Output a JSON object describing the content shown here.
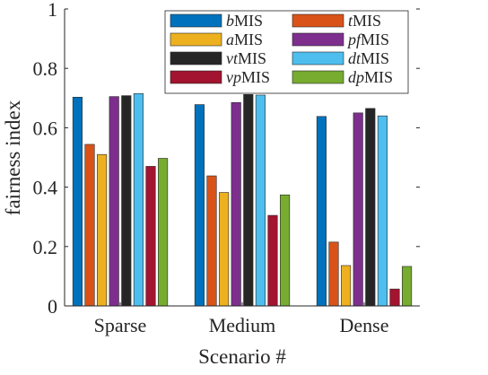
{
  "chart_data": {
    "type": "bar",
    "xlabel": "Scenario #",
    "ylabel": "fairness index",
    "ylim": [
      0,
      1
    ],
    "yticks": [
      0,
      0.2,
      0.4,
      0.6,
      0.8,
      1
    ],
    "ytick_labels": [
      "0",
      "0.2",
      "0.4",
      "0.6",
      "0.8",
      "1"
    ],
    "categories": [
      "Sparse",
      "Medium",
      "Dense"
    ],
    "legend_position": "top-right",
    "grid": false,
    "series": [
      {
        "name": "bMIS",
        "prefix": "b",
        "suffix": "MIS",
        "color": "#0072BD",
        "values": [
          0.703,
          0.678,
          0.638
        ]
      },
      {
        "name": "tMIS",
        "prefix": "t",
        "suffix": "MIS",
        "color": "#D95319",
        "values": [
          0.544,
          0.438,
          0.215
        ]
      },
      {
        "name": "aMIS",
        "prefix": "a",
        "suffix": "MIS",
        "color": "#EDB120",
        "values": [
          0.51,
          0.382,
          0.136
        ]
      },
      {
        "name": "pfMIS",
        "prefix": "pf",
        "suffix": "MIS",
        "color": "#7E2F8E",
        "values": [
          0.705,
          0.685,
          0.65
        ]
      },
      {
        "name": "vtMIS",
        "prefix": "vt",
        "suffix": "MIS",
        "color": "#262626",
        "values": [
          0.708,
          0.712,
          0.665
        ]
      },
      {
        "name": "dtMIS",
        "prefix": "dt",
        "suffix": "MIS",
        "color": "#4DBEEE",
        "values": [
          0.715,
          0.71,
          0.64
        ]
      },
      {
        "name": "vpMIS",
        "prefix": "vp",
        "suffix": "MIS",
        "color": "#A2142F",
        "values": [
          0.47,
          0.305,
          0.057
        ]
      },
      {
        "name": "dpMIS",
        "prefix": "dp",
        "suffix": "MIS",
        "color": "#77AC30",
        "values": [
          0.497,
          0.374,
          0.133
        ]
      }
    ],
    "legend_layout": [
      [
        "bMIS",
        "tMIS"
      ],
      [
        "aMIS",
        "pfMIS"
      ],
      [
        "vtMIS",
        "dtMIS"
      ],
      [
        "vpMIS",
        "dpMIS"
      ]
    ]
  }
}
